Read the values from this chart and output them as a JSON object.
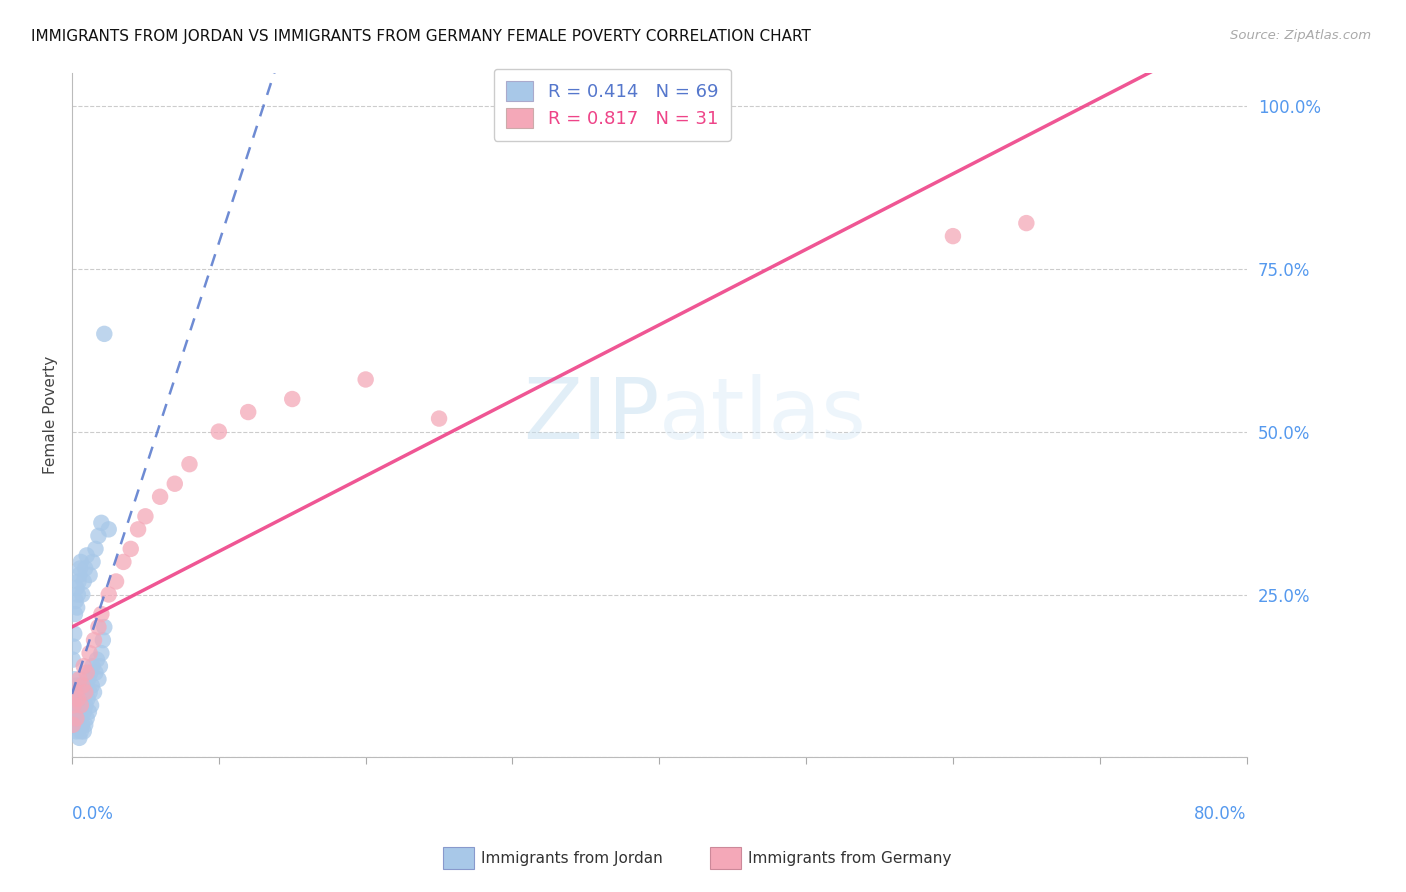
{
  "title": "IMMIGRANTS FROM JORDAN VS IMMIGRANTS FROM GERMANY FEMALE POVERTY CORRELATION CHART",
  "source": "Source: ZipAtlas.com",
  "ylabel": "Female Poverty",
  "jordan_color": "#a8c8e8",
  "germany_color": "#f4a8b8",
  "jordan_line_color": "#5577cc",
  "germany_line_color": "#ee4488",
  "background_color": "#ffffff",
  "grid_color": "#dddddd",
  "watermark_zip": "ZIP",
  "watermark_atlas": "atlas",
  "jordan_R": "0.414",
  "jordan_N": "69",
  "germany_R": "0.817",
  "germany_N": "31",
  "xmin": 0.0,
  "xmax": 0.8,
  "ymin": 0.0,
  "ymax": 1.05,
  "yticks": [
    0.0,
    0.25,
    0.5,
    0.75,
    1.0
  ],
  "ytick_labels": [
    "",
    "25.0%",
    "50.0%",
    "75.0%",
    "100.0%"
  ],
  "jordan_x": [
    0.0005,
    0.0008,
    0.001,
    0.0012,
    0.0015,
    0.002,
    0.0022,
    0.0025,
    0.003,
    0.0032,
    0.0035,
    0.004,
    0.0042,
    0.0045,
    0.005,
    0.0052,
    0.0055,
    0.006,
    0.0062,
    0.0065,
    0.007,
    0.0072,
    0.0075,
    0.008,
    0.0082,
    0.0085,
    0.009,
    0.0092,
    0.0095,
    0.01,
    0.0105,
    0.011,
    0.0115,
    0.012,
    0.0125,
    0.013,
    0.0135,
    0.014,
    0.015,
    0.016,
    0.017,
    0.018,
    0.019,
    0.02,
    0.021,
    0.022,
    0.0005,
    0.001,
    0.0015,
    0.002,
    0.0025,
    0.003,
    0.0035,
    0.004,
    0.0045,
    0.005,
    0.0055,
    0.006,
    0.007,
    0.008,
    0.009,
    0.01,
    0.012,
    0.014,
    0.016,
    0.018,
    0.02,
    0.022,
    0.025
  ],
  "jordan_y": [
    0.05,
    0.07,
    0.08,
    0.1,
    0.12,
    0.06,
    0.09,
    0.11,
    0.04,
    0.07,
    0.1,
    0.05,
    0.08,
    0.11,
    0.03,
    0.06,
    0.09,
    0.04,
    0.07,
    0.1,
    0.05,
    0.08,
    0.11,
    0.04,
    0.07,
    0.1,
    0.05,
    0.08,
    0.11,
    0.06,
    0.09,
    0.12,
    0.07,
    0.1,
    0.13,
    0.08,
    0.11,
    0.14,
    0.1,
    0.13,
    0.15,
    0.12,
    0.14,
    0.16,
    0.18,
    0.2,
    0.15,
    0.17,
    0.19,
    0.22,
    0.24,
    0.26,
    0.23,
    0.25,
    0.27,
    0.28,
    0.29,
    0.3,
    0.25,
    0.27,
    0.29,
    0.31,
    0.28,
    0.3,
    0.32,
    0.34,
    0.36,
    0.65,
    0.35
  ],
  "germany_x": [
    0.0005,
    0.001,
    0.002,
    0.003,
    0.004,
    0.005,
    0.006,
    0.007,
    0.008,
    0.009,
    0.01,
    0.012,
    0.015,
    0.018,
    0.02,
    0.025,
    0.03,
    0.035,
    0.04,
    0.045,
    0.05,
    0.06,
    0.07,
    0.08,
    0.1,
    0.12,
    0.15,
    0.2,
    0.25,
    0.6,
    0.65
  ],
  "germany_y": [
    0.05,
    0.08,
    0.1,
    0.06,
    0.09,
    0.12,
    0.08,
    0.11,
    0.14,
    0.1,
    0.13,
    0.16,
    0.18,
    0.2,
    0.22,
    0.25,
    0.27,
    0.3,
    0.32,
    0.35,
    0.37,
    0.4,
    0.42,
    0.45,
    0.5,
    0.53,
    0.55,
    0.58,
    0.52,
    0.8,
    0.82
  ]
}
